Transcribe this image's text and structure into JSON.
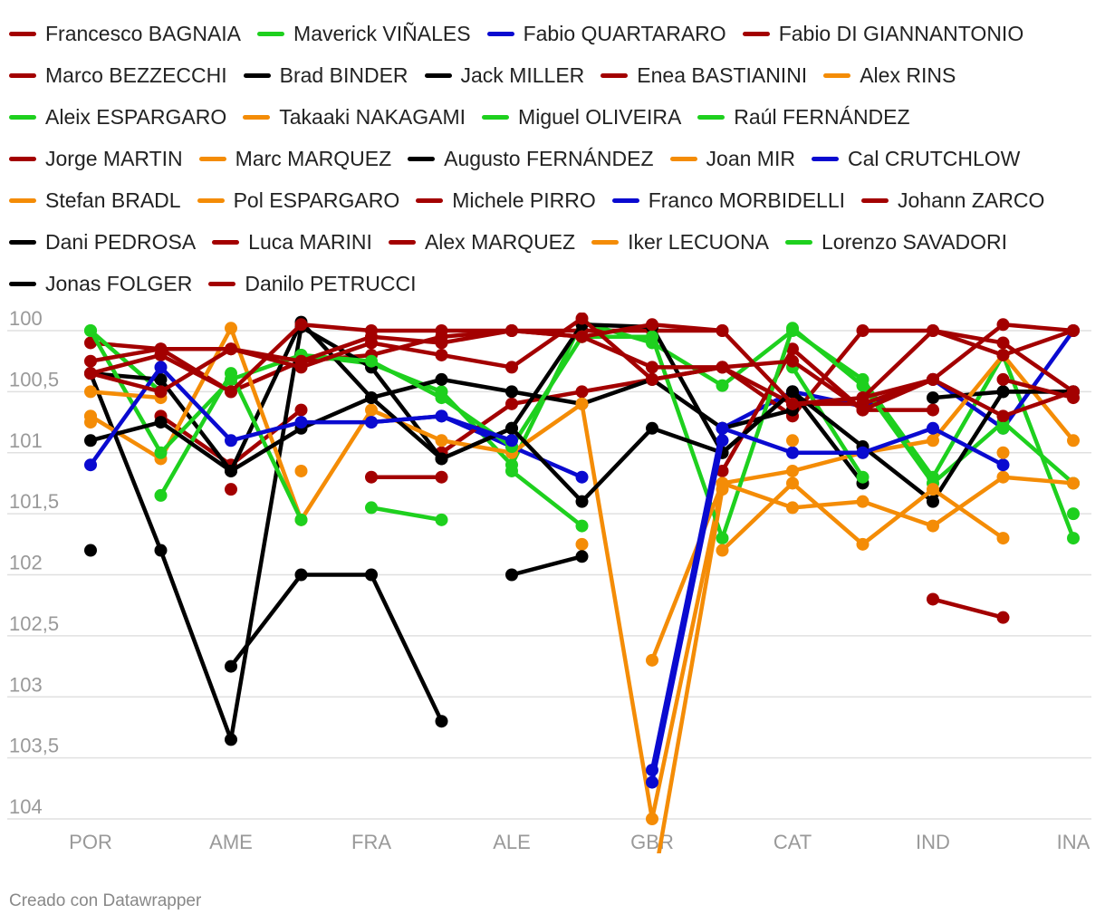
{
  "colors": {
    "green": "#1ed01e",
    "orange": "#f48c06",
    "black": "#000000",
    "blue": "#0a0ad0",
    "darkred": "#a30000",
    "grid": "#e0e0e0",
    "tick": "#999999"
  },
  "credit": "Creado con Datawrapper",
  "chart_data": {
    "type": "line",
    "title": "",
    "xlabel": "",
    "ylabel": "",
    "x": [
      "POR",
      "",
      "AME",
      "",
      "FRA",
      "",
      "ALE",
      "",
      "GBR",
      "",
      "CAT",
      "",
      "IND",
      "",
      "INA"
    ],
    "ylim": [
      104.15,
      99.95
    ],
    "y_reversed": true,
    "yticks": [
      100,
      100.5,
      101,
      101.5,
      102,
      102.5,
      103,
      103.5,
      104
    ],
    "ytick_labels": [
      "100",
      "100,5",
      "101",
      "101,5",
      "102",
      "102,5",
      "103",
      "103,5",
      "104"
    ],
    "series": [
      {
        "name": "Francesco BAGNAIA",
        "color": "darkred",
        "values": [
          100.1,
          100.15,
          100.5,
          100.25,
          100.2,
          100.05,
          100.0,
          100.0,
          100.0,
          100.0,
          null,
          null,
          null,
          null,
          null
        ]
      },
      {
        "name": "Maverick VIÑALES",
        "color": "green",
        "values": [
          100.0,
          100.5,
          null,
          100.2,
          100.27,
          100.5,
          101.1,
          99.93,
          100.1,
          100.45,
          100.0,
          100.4,
          101.2,
          100.2,
          101.7
        ]
      },
      {
        "name": "Fabio QUARTARARO",
        "color": "blue",
        "values": [
          null,
          100.5,
          null,
          null,
          100.75,
          100.7,
          100.95,
          101.2,
          null,
          100.8,
          100.5,
          100.62,
          100.4,
          100.8,
          100.0
        ]
      },
      {
        "name": "Fabio DI GIANNANTONIO",
        "color": "darkred",
        "values": [
          null,
          null,
          null,
          null,
          null,
          null,
          null,
          null,
          null,
          null,
          null,
          null,
          102.2,
          102.35,
          null
        ]
      },
      {
        "name": "Marco BEZZECCHI",
        "color": "darkred",
        "values": [
          null,
          100.7,
          101.1,
          100.65,
          null,
          101.0,
          100.6,
          100.5,
          100.4,
          100.3,
          100.7,
          100.0,
          100.0,
          100.1,
          100.5
        ]
      },
      {
        "name": "Brad BINDER",
        "color": "black",
        "values": [
          100.35,
          100.4,
          101.15,
          99.93,
          100.55,
          100.4,
          100.5,
          100.6,
          100.4,
          100.8,
          100.65,
          null,
          100.55,
          100.5,
          100.5
        ]
      },
      {
        "name": "Jack MILLER",
        "color": "black",
        "values": [
          100.35,
          101.8,
          103.35,
          99.97,
          100.3,
          101.05,
          100.8,
          99.95,
          99.97,
          101.0,
          100.5,
          101.25,
          null,
          null,
          null
        ]
      },
      {
        "name": "Enea BASTIANINI",
        "color": "darkred",
        "values": [
          null,
          null,
          null,
          null,
          null,
          null,
          null,
          null,
          null,
          101.15,
          100.15,
          100.65,
          100.65,
          null,
          null
        ]
      },
      {
        "name": "Alex RINS",
        "color": "orange",
        "values": [
          100.7,
          101.05,
          99.98,
          101.55,
          100.65,
          100.9,
          101.0,
          100.6,
          104.0,
          101.25,
          101.15,
          101.0,
          100.9,
          100.2,
          100.9
        ]
      },
      {
        "name": "Aleix ESPARGARO",
        "color": "green",
        "values": [
          100.0,
          101.0,
          100.4,
          100.2,
          100.25,
          100.55,
          100.95,
          100.05,
          100.05,
          101.7,
          99.98,
          100.45,
          101.25,
          100.75,
          101.25
        ]
      },
      {
        "name": "Takaaki NAKAGAMI",
        "color": "orange",
        "values": [
          null,
          null,
          null,
          null,
          null,
          null,
          null,
          null,
          102.7,
          101.25,
          101.45,
          101.4,
          101.6,
          101.2,
          101.25
        ]
      },
      {
        "name": "Miguel OLIVEIRA",
        "color": "green",
        "values": [
          null,
          101.35,
          100.35,
          101.55,
          null,
          null,
          101.15,
          101.6,
          null,
          null,
          100.3,
          101.2,
          null,
          null,
          101.5
        ]
      },
      {
        "name": "Raúl FERNÁNDEZ",
        "color": "green",
        "values": [
          null,
          null,
          null,
          null,
          101.45,
          101.55,
          null,
          null,
          null,
          null,
          null,
          null,
          null,
          null,
          null
        ]
      },
      {
        "name": "Jorge MARTIN",
        "color": "darkred",
        "values": [
          100.35,
          100.2,
          100.5,
          99.95,
          100.0,
          100.0,
          100.0,
          100.05,
          100.3,
          100.3,
          100.6,
          100.6,
          100.4,
          99.95,
          100.0
        ]
      },
      {
        "name": "Marc MARQUEZ",
        "color": "orange",
        "values": [
          100.75,
          null,
          null,
          101.15,
          null,
          null,
          null,
          null,
          null,
          null,
          null,
          null,
          null,
          null,
          null
        ]
      },
      {
        "name": "Augusto FERNÁNDEZ",
        "color": "black",
        "values": [
          100.9,
          100.75,
          101.15,
          100.8,
          100.55,
          101.05,
          100.8,
          101.4,
          100.8,
          101.0,
          100.5,
          100.95,
          101.4,
          100.5,
          100.5
        ]
      },
      {
        "name": "Joan MIR",
        "color": "orange",
        "values": [
          100.7,
          null,
          null,
          null,
          null,
          null,
          null,
          101.75,
          null,
          101.8,
          101.25,
          101.75,
          101.3,
          101.7,
          null
        ]
      },
      {
        "name": "Cal CRUTCHLOW",
        "color": "blue",
        "values": [
          null,
          null,
          null,
          null,
          null,
          null,
          null,
          null,
          103.7,
          100.9,
          null,
          null,
          null,
          null,
          null
        ]
      },
      {
        "name": "Stefan BRADL",
        "color": "orange",
        "values": [
          100.5,
          100.55,
          null,
          null,
          null,
          null,
          null,
          null,
          null,
          null,
          null,
          null,
          null,
          null,
          null
        ]
      },
      {
        "name": "Pol ESPARGARO",
        "color": "orange",
        "values": [
          null,
          null,
          null,
          null,
          null,
          null,
          null,
          null,
          104.6,
          101.3,
          null,
          null,
          null,
          null,
          null
        ]
      },
      {
        "name": "Michele PIRRO",
        "color": "darkred",
        "values": [
          null,
          null,
          null,
          null,
          101.2,
          101.2,
          null,
          null,
          null,
          null,
          null,
          null,
          null,
          null,
          null
        ]
      },
      {
        "name": "Franco MORBIDELLI",
        "color": "blue",
        "values": [
          101.1,
          100.3,
          100.9,
          100.75,
          100.75,
          100.7,
          100.9,
          null,
          103.6,
          100.8,
          101.0,
          101.0,
          100.8,
          101.1,
          null
        ]
      },
      {
        "name": "Johann ZARCO",
        "color": "darkred",
        "values": [
          100.35,
          100.5,
          100.15,
          100.3,
          100.1,
          100.2,
          100.3,
          99.9,
          100.4,
          100.3,
          100.25,
          100.65,
          100.4,
          100.7,
          100.5
        ]
      },
      {
        "name": "Dani PEDROSA",
        "color": "black",
        "values": [
          null,
          null,
          null,
          null,
          null,
          null,
          102.0,
          101.85,
          null,
          null,
          null,
          null,
          null,
          null,
          null
        ]
      },
      {
        "name": "Luca MARINI",
        "color": "darkred",
        "values": [
          100.25,
          100.15,
          100.15,
          100.25,
          100.05,
          100.1,
          100.0,
          100.05,
          99.95,
          100.0,
          100.6,
          100.55,
          100.0,
          100.2,
          100.0
        ]
      },
      {
        "name": "Alex MARQUEZ",
        "color": "darkred",
        "values": [
          null,
          null,
          101.3,
          null,
          null,
          null,
          null,
          null,
          null,
          null,
          null,
          null,
          null,
          100.4,
          100.55
        ]
      },
      {
        "name": "Iker LECUONA",
        "color": "orange",
        "values": [
          null,
          null,
          null,
          null,
          null,
          null,
          null,
          null,
          null,
          null,
          100.9,
          null,
          null,
          101.0,
          null
        ]
      },
      {
        "name": "Lorenzo SAVADORI",
        "color": "green",
        "values": [
          null,
          null,
          null,
          null,
          null,
          null,
          null,
          null,
          null,
          null,
          null,
          null,
          null,
          100.8,
          null
        ]
      },
      {
        "name": "Jonas FOLGER",
        "color": "black",
        "values": [
          101.8,
          null,
          102.75,
          102.0,
          102.0,
          103.2,
          null,
          null,
          null,
          null,
          null,
          null,
          null,
          null,
          null
        ]
      },
      {
        "name": "Danilo PETRUCCI",
        "color": "darkred",
        "values": [
          null,
          null,
          null,
          null,
          null,
          null,
          null,
          null,
          null,
          null,
          null,
          100.55,
          100.4,
          null,
          null
        ]
      }
    ]
  }
}
